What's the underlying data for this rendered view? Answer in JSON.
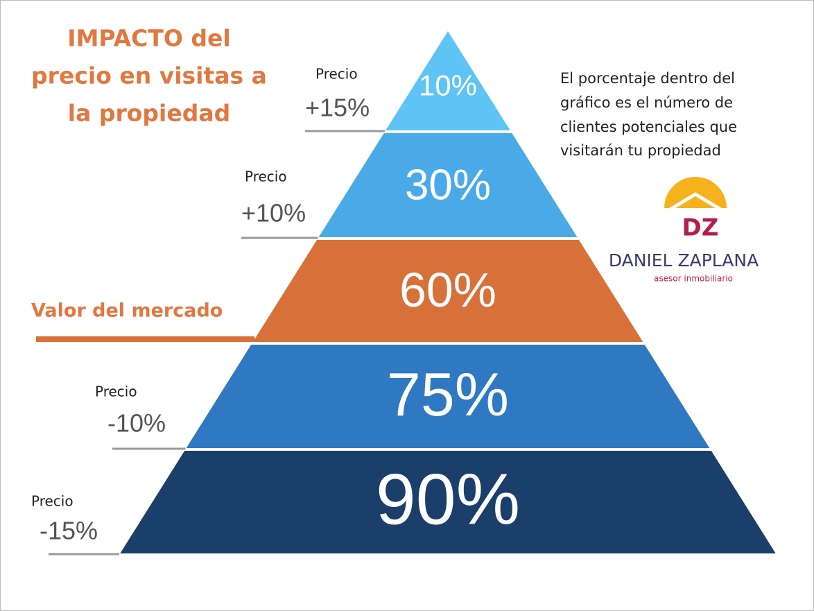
{
  "title": [
    "IMPACTO del",
    "precio en visitas a",
    "la propiedad"
  ],
  "note": [
    "El porcentaje dentro del",
    "gráfico es el número de",
    "clientes potenciales que",
    "visitarán tu propiedad"
  ],
  "logo": {
    "initials": "DZ",
    "name": "DANIEL ZAPLANA",
    "tagline": "asesor inmobiliario"
  },
  "levels": [
    {
      "label": "Precio",
      "change": "+15%",
      "value": "10%"
    },
    {
      "label": "Precio",
      "change": "+10%",
      "value": "30%"
    },
    {
      "label": "Valor del mercado",
      "value": "60%"
    },
    {
      "label": "Precio",
      "change": "-10%",
      "value": "75%"
    },
    {
      "label": "Precio",
      "change": "-15%",
      "value": "90%"
    }
  ]
}
